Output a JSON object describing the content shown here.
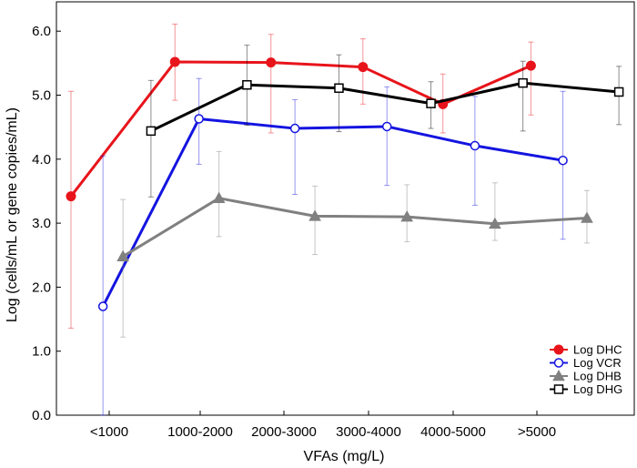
{
  "chart_data": {
    "type": "line",
    "xlabel": "VFAs (mg/L)",
    "ylabel": "Log (cells/mL or gene copies/mL)",
    "categories": [
      "<1000",
      "1000-2000",
      "2000-3000",
      "3000-4000",
      "4000-5000",
      ">5000"
    ],
    "ylim": [
      0,
      6.5
    ],
    "yticks": [
      "0.0",
      "1.0",
      "2.0",
      "3.0",
      "4.0",
      "5.0",
      "6.0"
    ],
    "grid": false,
    "legend_position": "bottom-right",
    "series": [
      {
        "name": "Log DHC",
        "color": "#e8141b",
        "marker": "filled-circle",
        "x": [
          0.0,
          1.3,
          2.5,
          3.65,
          4.65,
          5.75
        ],
        "values": [
          3.42,
          5.52,
          5.51,
          5.44,
          4.86,
          5.46
        ],
        "error_low": [
          1.36,
          4.92,
          4.41,
          4.86,
          4.41,
          4.69
        ],
        "error_high": [
          5.06,
          6.11,
          5.95,
          5.88,
          5.33,
          5.83
        ]
      },
      {
        "name": "Log VCR",
        "color": "#1414e0",
        "marker": "open-circle",
        "x": [
          0.4,
          1.6,
          2.8,
          3.95,
          5.05,
          6.15
        ],
        "values": [
          1.7,
          4.63,
          4.48,
          4.51,
          4.21,
          3.98
        ],
        "error_low": [
          0.0,
          3.92,
          3.45,
          3.59,
          3.28,
          2.75
        ],
        "error_high": [
          4.05,
          5.26,
          4.93,
          5.13,
          4.98,
          5.06
        ]
      },
      {
        "name": "Log DHB",
        "color": "#808080",
        "marker": "filled-triangle",
        "x": [
          0.65,
          1.85,
          3.05,
          4.2,
          5.3,
          6.45
        ],
        "values": [
          2.48,
          3.39,
          3.11,
          3.1,
          2.99,
          3.08
        ],
        "error_low": [
          1.22,
          2.79,
          2.51,
          2.71,
          2.73,
          2.69
        ],
        "error_high": [
          3.37,
          4.12,
          3.58,
          3.6,
          3.63,
          3.51
        ]
      },
      {
        "name": "Log DHG",
        "color": "#000000",
        "marker": "open-square",
        "x": [
          1.0,
          2.2,
          3.35,
          4.5,
          5.65,
          6.85
        ],
        "values": [
          4.44,
          5.16,
          5.11,
          4.87,
          5.19,
          5.05
        ],
        "error_low": [
          3.41,
          4.53,
          4.43,
          4.48,
          4.44,
          4.54
        ],
        "error_high": [
          5.23,
          5.78,
          5.63,
          5.21,
          5.53,
          5.45
        ]
      }
    ]
  }
}
